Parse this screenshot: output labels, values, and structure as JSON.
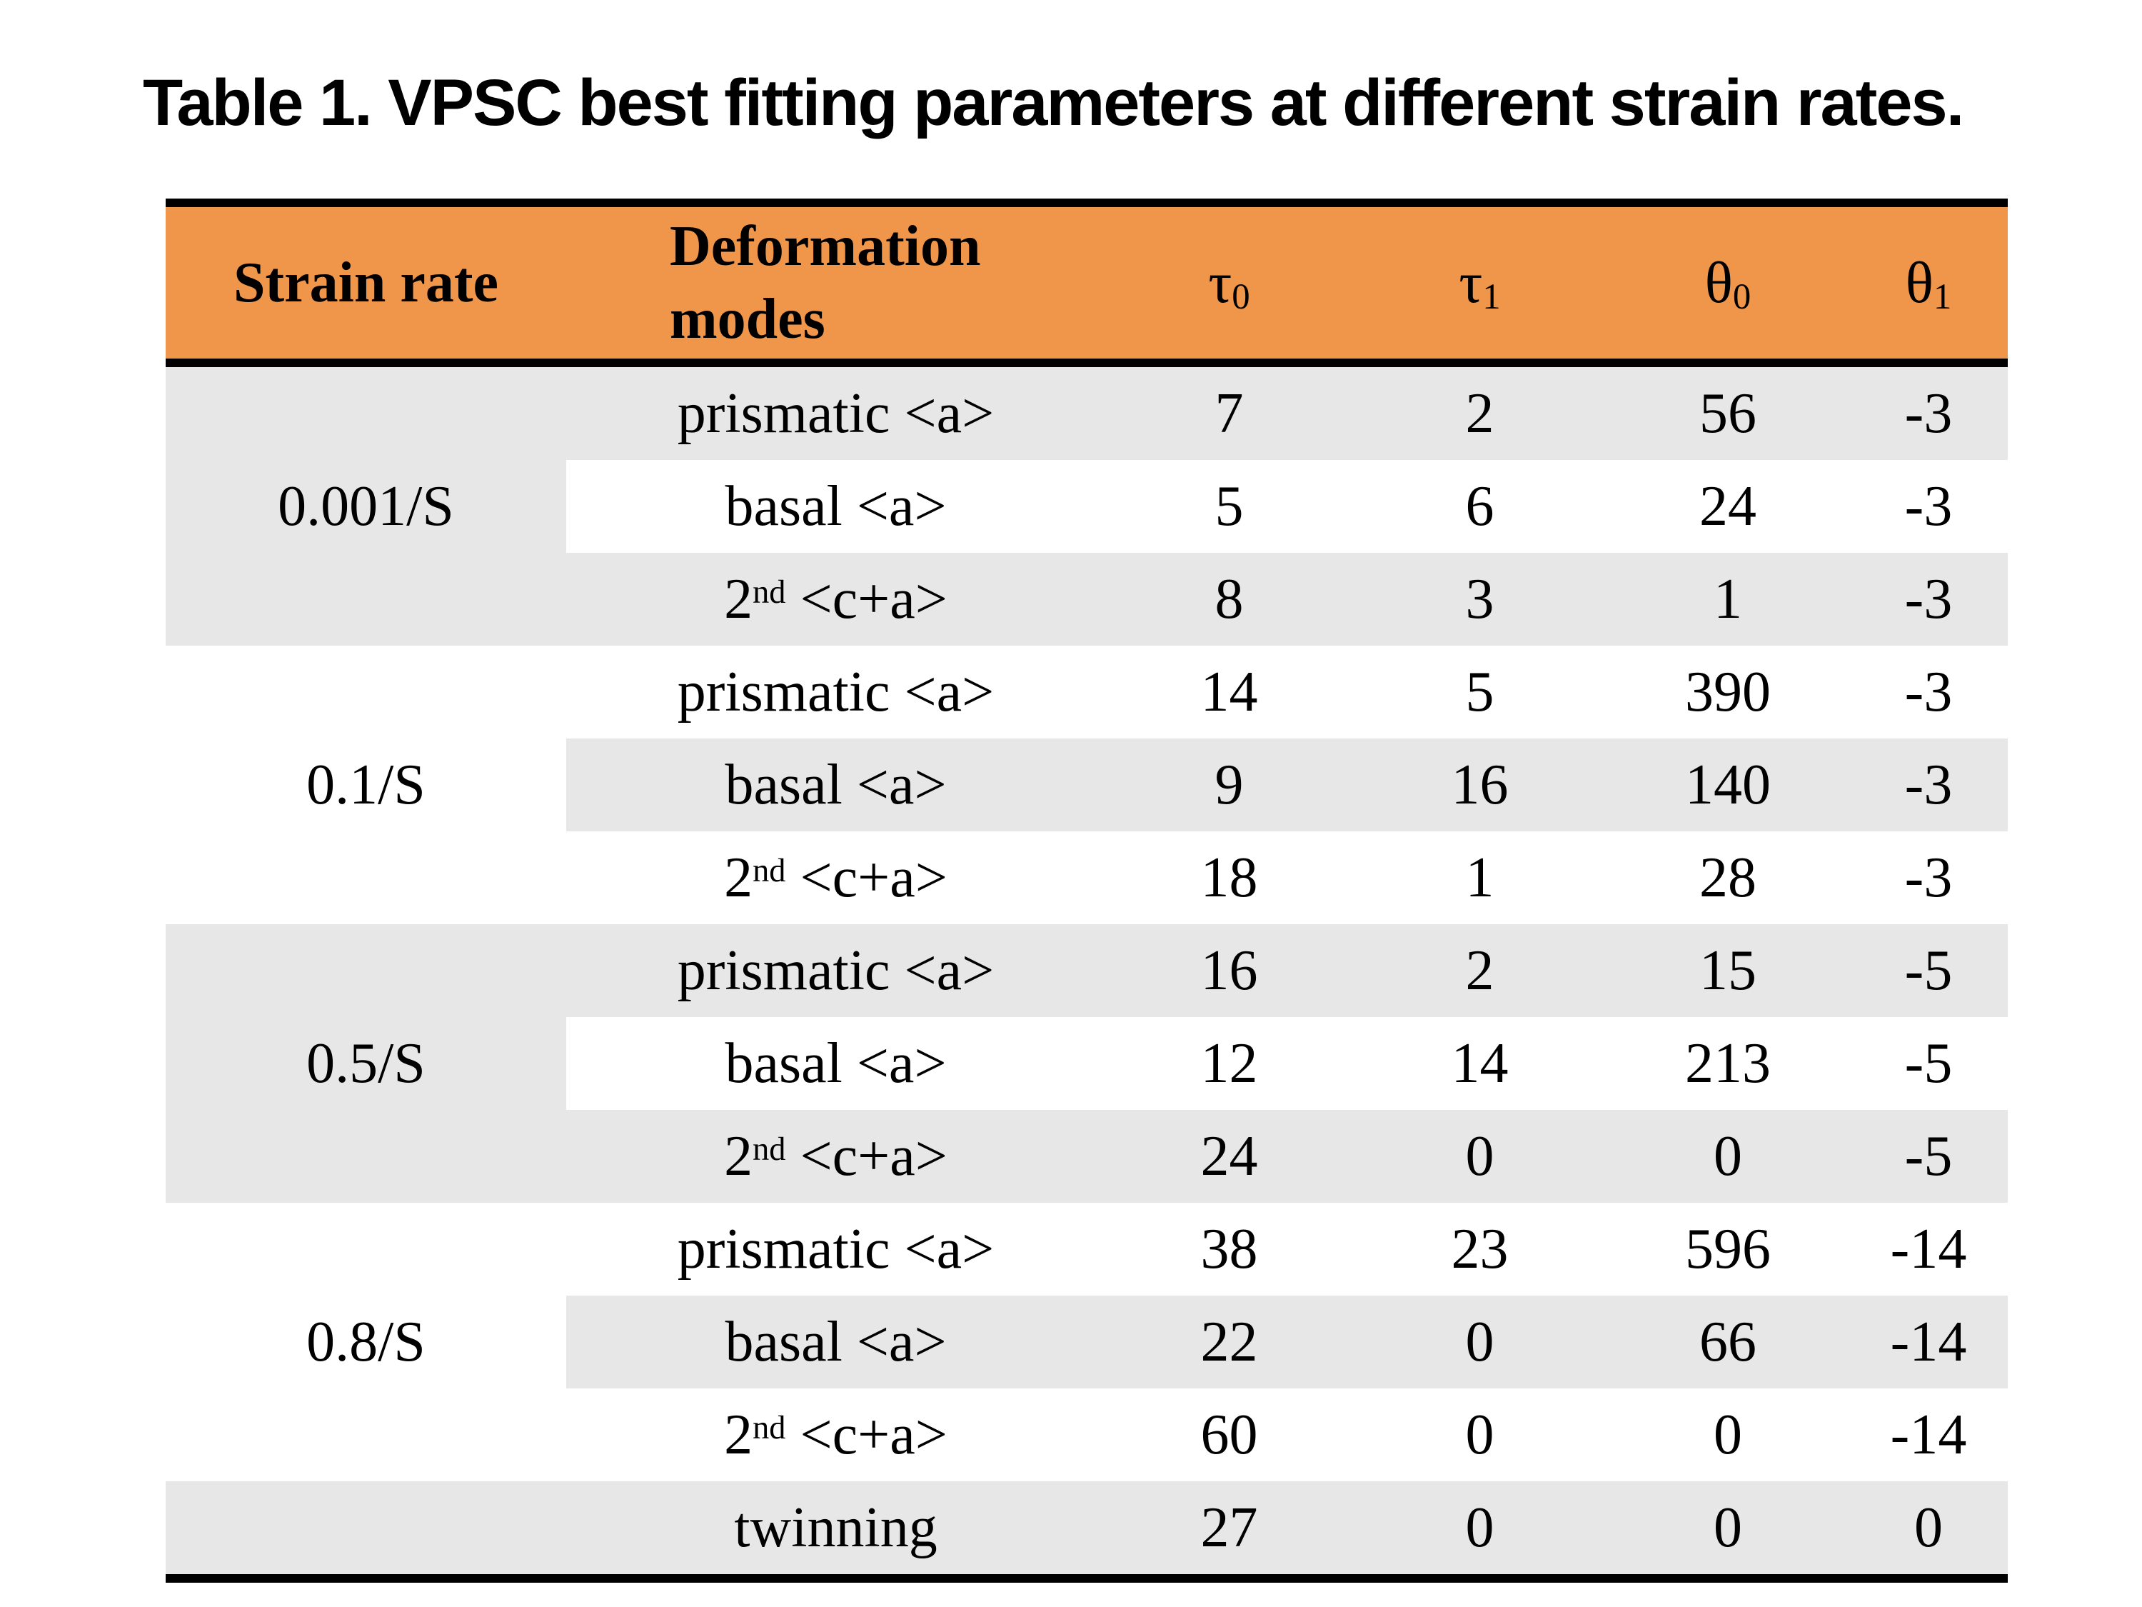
{
  "page": {
    "title": "Table 1. VPSC best fitting parameters at different strain rates."
  },
  "colors": {
    "header_bg": "#F0964B",
    "band_bg": "#E7E7E7",
    "rule": "#000000",
    "page_bg": "#FFFFFF"
  },
  "table": {
    "header": {
      "strain_rate": "Strain rate",
      "deformation_modes": "Deformation modes",
      "tau0": "τ_{0}",
      "tau1": "τ_{1}",
      "theta0": "θ_{0}",
      "theta1": "θ_{1}"
    },
    "groups": [
      {
        "rate": "0.001/S",
        "rows": [
          {
            "mode": "prismatic <a>",
            "tau0": "7",
            "tau1": "2",
            "theta0": "56",
            "theta1": "-3"
          },
          {
            "mode": "basal <a>",
            "tau0": "5",
            "tau1": "6",
            "theta0": "24",
            "theta1": "-3"
          },
          {
            "mode": "2^{nd} <c+a>",
            "tau0": "8",
            "tau1": "3",
            "theta0": "1",
            "theta1": "-3"
          }
        ]
      },
      {
        "rate": "0.1/S",
        "rows": [
          {
            "mode": "prismatic <a>",
            "tau0": "14",
            "tau1": "5",
            "theta0": "390",
            "theta1": "-3"
          },
          {
            "mode": "basal <a>",
            "tau0": "9",
            "tau1": "16",
            "theta0": "140",
            "theta1": "-3"
          },
          {
            "mode": "2^{nd} <c+a>",
            "tau0": "18",
            "tau1": "1",
            "theta0": "28",
            "theta1": "-3"
          }
        ]
      },
      {
        "rate": "0.5/S",
        "rows": [
          {
            "mode": "prismatic <a>",
            "tau0": "16",
            "tau1": "2",
            "theta0": "15",
            "theta1": "-5"
          },
          {
            "mode": "basal <a>",
            "tau0": "12",
            "tau1": "14",
            "theta0": "213",
            "theta1": "-5"
          },
          {
            "mode": "2^{nd} <c+a>",
            "tau0": "24",
            "tau1": "0",
            "theta0": "0",
            "theta1": "-5"
          }
        ]
      },
      {
        "rate": "0.8/S",
        "rows": [
          {
            "mode": "prismatic <a>",
            "tau0": "38",
            "tau1": "23",
            "theta0": "596",
            "theta1": "-14"
          },
          {
            "mode": "basal <a>",
            "tau0": "22",
            "tau1": "0",
            "theta0": "66",
            "theta1": "-14"
          },
          {
            "mode": "2^{nd} <c+a>",
            "tau0": "60",
            "tau1": "0",
            "theta0": "0",
            "theta1": "-14"
          }
        ]
      }
    ],
    "last_row": {
      "mode": "twinning",
      "tau0": "27",
      "tau1": "0",
      "theta0": "0",
      "theta1": "0"
    }
  },
  "chart_data": {
    "type": "table",
    "title": "Table 1. VPSC best fitting parameters at different strain rates.",
    "columns": [
      "Strain rate",
      "Deformation modes",
      "τ0",
      "τ1",
      "θ0",
      "θ1"
    ],
    "rows": [
      [
        "0.001/S",
        "prismatic <a>",
        7,
        2,
        56,
        -3
      ],
      [
        "0.001/S",
        "basal <a>",
        5,
        6,
        24,
        -3
      ],
      [
        "0.001/S",
        "2nd <c+a>",
        8,
        3,
        1,
        -3
      ],
      [
        "0.1/S",
        "prismatic <a>",
        14,
        5,
        390,
        -3
      ],
      [
        "0.1/S",
        "basal <a>",
        9,
        16,
        140,
        -3
      ],
      [
        "0.1/S",
        "2nd <c+a>",
        18,
        1,
        28,
        -3
      ],
      [
        "0.5/S",
        "prismatic <a>",
        16,
        2,
        15,
        -5
      ],
      [
        "0.5/S",
        "basal <a>",
        12,
        14,
        213,
        -5
      ],
      [
        "0.5/S",
        "2nd <c+a>",
        24,
        0,
        0,
        -5
      ],
      [
        "0.8/S",
        "prismatic <a>",
        38,
        23,
        596,
        -14
      ],
      [
        "0.8/S",
        "basal <a>",
        22,
        0,
        66,
        -14
      ],
      [
        "0.8/S",
        "2nd <c+a>",
        60,
        0,
        0,
        -14
      ],
      [
        "",
        "twinning",
        27,
        0,
        0,
        0
      ]
    ]
  }
}
